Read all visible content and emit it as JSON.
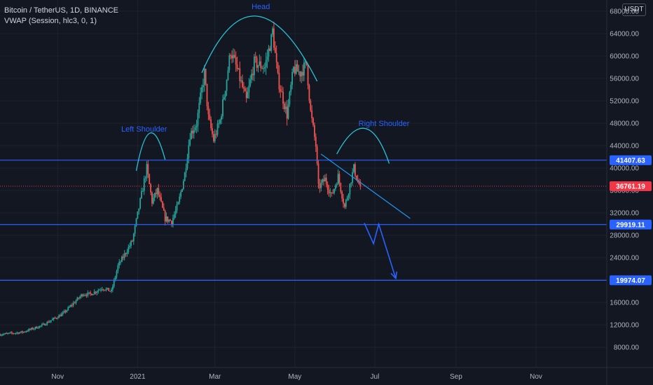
{
  "header": {
    "symbol": "Bitcoin / TetherUS, 1D, BINANCE",
    "indicator": "VWAP (Session, hlc3, 0, 1)"
  },
  "currency": "USDT",
  "chart_data": {
    "type": "candlestick",
    "y_ticks": [
      8000,
      12000,
      16000,
      20000,
      24000,
      28000,
      32000,
      36000,
      40000,
      44000,
      48000,
      52000,
      56000,
      60000,
      64000,
      68000
    ],
    "y_tick_labels": [
      "8000.00",
      "12000.00",
      "16000.00",
      "20000.00",
      "24000.00",
      "28000.00",
      "32000.00",
      "36000.00",
      "40000.00",
      "44000.00",
      "48000.00",
      "52000.00",
      "56000.00",
      "60000.00",
      "64000.00",
      "68000.00"
    ],
    "ylim": [
      4400,
      70000
    ],
    "x_ticks": [
      {
        "label": "Nov",
        "date": "2020-11-01"
      },
      {
        "label": "2021",
        "date": "2021-01-01"
      },
      {
        "label": "Mar",
        "date": "2021-03-01"
      },
      {
        "label": "May",
        "date": "2021-05-01"
      },
      {
        "label": "Jul",
        "date": "2021-07-01"
      },
      {
        "label": "Sep",
        "date": "2021-09-01"
      },
      {
        "label": "Nov",
        "date": "2021-11-01"
      }
    ],
    "xlim": [
      "2020-09-18",
      "2021-12-25"
    ],
    "grid": true,
    "price_path": [
      [
        "2020-09-18",
        10300
      ],
      [
        "2020-10-05",
        10700
      ],
      [
        "2020-10-20",
        11900
      ],
      [
        "2020-11-05",
        14000
      ],
      [
        "2020-11-20",
        17500
      ],
      [
        "2020-11-26",
        17500
      ],
      [
        "2020-12-05",
        18600
      ],
      [
        "2020-12-12",
        18000
      ],
      [
        "2020-12-17",
        22500
      ],
      [
        "2020-12-28",
        27000
      ],
      [
        "2021-01-08",
        40000
      ],
      [
        "2021-01-12",
        34000
      ],
      [
        "2021-01-16",
        36000
      ],
      [
        "2021-01-22",
        31000
      ],
      [
        "2021-01-27",
        30500
      ],
      [
        "2021-02-01",
        33500
      ],
      [
        "2021-02-06",
        39000
      ],
      [
        "2021-02-10",
        46000
      ],
      [
        "2021-02-15",
        48000
      ],
      [
        "2021-02-21",
        57000
      ],
      [
        "2021-02-24",
        49000
      ],
      [
        "2021-02-28",
        45000
      ],
      [
        "2021-03-05",
        48500
      ],
      [
        "2021-03-10",
        56000
      ],
      [
        "2021-03-13",
        61000
      ],
      [
        "2021-03-18",
        57500
      ],
      [
        "2021-03-25",
        52000
      ],
      [
        "2021-03-31",
        58800
      ],
      [
        "2021-04-08",
        58000
      ],
      [
        "2021-04-13",
        63000
      ],
      [
        "2021-04-14",
        64500
      ],
      [
        "2021-04-18",
        56000
      ],
      [
        "2021-04-25",
        49500
      ],
      [
        "2021-04-30",
        57700
      ],
      [
        "2021-05-05",
        57000
      ],
      [
        "2021-05-10",
        58500
      ],
      [
        "2021-05-13",
        50000
      ],
      [
        "2021-05-17",
        44000
      ],
      [
        "2021-05-19",
        36500
      ],
      [
        "2021-05-24",
        38000
      ],
      [
        "2021-05-29",
        35000
      ],
      [
        "2021-06-03",
        38500
      ],
      [
        "2021-06-08",
        33000
      ],
      [
        "2021-06-12",
        37000
      ],
      [
        "2021-06-15",
        40000
      ],
      [
        "2021-06-18",
        37500
      ],
      [
        "2021-06-20",
        36761
      ]
    ],
    "horizontal_levels": [
      {
        "price": 41407.63,
        "label": "41407.63",
        "color": "#2962ff"
      },
      {
        "price": 29919.11,
        "label": "29919.11",
        "color": "#2962ff"
      },
      {
        "price": 19974.07,
        "label": "19974.07",
        "color": "#2962ff"
      }
    ],
    "last_price": {
      "price": 36761.19,
      "label": "36761.19",
      "color": "#f23645"
    },
    "annotations": [
      {
        "text": "Left Shoulder",
        "date": "2021-01-06",
        "price": 46500
      },
      {
        "text": "Head",
        "date": "2021-04-05",
        "price": 68400
      },
      {
        "text": "Right Shoulder",
        "date": "2021-07-08",
        "price": 47500
      }
    ],
    "arcs": [
      {
        "from": [
          "2020-12-31",
          39500
        ],
        "ctrl": [
          "2021-01-10",
          52000
        ],
        "to": [
          "2021-01-22",
          41500
        ]
      },
      {
        "from": [
          "2021-02-19",
          57000
        ],
        "ctrl": [
          "2021-03-30",
          78000
        ],
        "to": [
          "2021-05-18",
          55500
        ]
      },
      {
        "from": [
          "2021-06-02",
          42500
        ],
        "ctrl": [
          "2021-06-25",
          52500
        ],
        "to": [
          "2021-07-12",
          40800
        ]
      }
    ],
    "trendline": {
      "from": [
        "2021-05-21",
        42500
      ],
      "to": [
        "2021-07-28",
        31000
      ]
    },
    "projection_arrow": [
      [
        "2021-06-23",
        30200
      ],
      [
        "2021-06-30",
        26500
      ],
      [
        "2021-07-04",
        30000
      ],
      [
        "2021-07-17",
        20300
      ]
    ],
    "colors": {
      "up": "#26a69a",
      "down": "#ef5350",
      "level": "#2962ff",
      "arc": "#26c6da",
      "trend": "#2196f3",
      "arrow": "#2962ff"
    }
  }
}
